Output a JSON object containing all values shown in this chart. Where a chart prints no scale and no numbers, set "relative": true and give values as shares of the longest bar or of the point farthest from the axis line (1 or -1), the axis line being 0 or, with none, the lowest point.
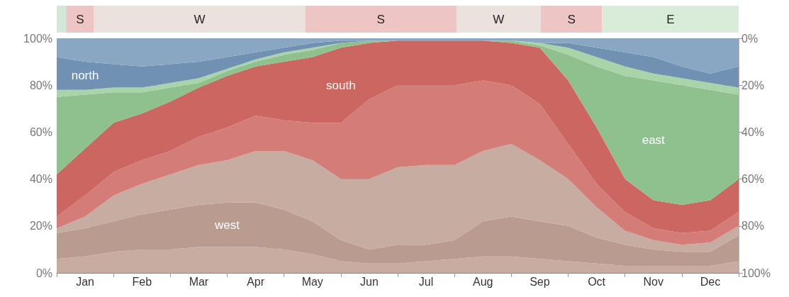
{
  "chart_data": [
    {
      "type": "bar",
      "orientation": "horizontal",
      "stacked": true,
      "relative": true,
      "categories": [
        null
      ],
      "series": [
        {
          "color": "#d3e8d8",
          "values": [
            0.0137
          ]
        },
        {
          "name": "S",
          "color": "#eec5c5",
          "values": [
            0.0411
          ]
        },
        {
          "name": "W",
          "color": "#ebe1dd",
          "values": [
            0.3096
          ]
        },
        {
          "name": "S",
          "color": "#eec5c5",
          "values": [
            0.2219
          ]
        },
        {
          "name": "W",
          "color": "#ebe1dd",
          "values": [
            0.1233
          ]
        },
        {
          "name": "S",
          "color": "#eec5c5",
          "values": [
            0.0904
          ]
        },
        {
          "name": "E",
          "color": "#d9ebd9",
          "values": [
            0.2
          ]
        }
      ]
    },
    {
      "type": "area",
      "stacked": true,
      "grid": true,
      "categories": [
        null,
        "Jan",
        null,
        "Feb",
        null,
        "Mar",
        null,
        "Apr",
        null,
        "May",
        null,
        "Jun",
        null,
        "Jul",
        null,
        "Aug",
        null,
        "Sep",
        null,
        "Oct",
        null,
        "Nov",
        null,
        "Dec",
        null
      ],
      "ylim": [
        0,
        100
      ],
      "yticks": [
        {
          "value": 0,
          "label": "0%"
        },
        {
          "value": 20,
          "label": "20%"
        },
        {
          "value": 40,
          "label": "40%"
        },
        {
          "value": 60,
          "label": "60%"
        },
        {
          "value": 80,
          "label": "80%"
        },
        {
          "value": 100,
          "label": "100%"
        }
      ],
      "y2lim": [
        100,
        0
      ],
      "y2ticks": [
        {
          "value": 0,
          "label": "0%"
        },
        {
          "value": 20,
          "label": "20%"
        },
        {
          "value": 40,
          "label": "40%"
        },
        {
          "value": 60,
          "label": "60%"
        },
        {
          "value": 80,
          "label": "80%"
        },
        {
          "value": 100,
          "label": "100%"
        }
      ],
      "series": [
        {
          "color": "#c8aca1",
          "values": [
            6,
            7,
            9,
            10,
            10,
            11,
            11,
            11,
            10,
            8,
            5,
            4,
            4,
            5,
            6,
            7,
            7,
            6,
            5,
            4,
            3,
            3,
            3,
            3,
            5
          ]
        },
        {
          "name": "west",
          "color": "#b99b8f",
          "values": [
            11,
            12,
            13,
            15,
            17,
            18,
            19,
            19,
            17,
            14,
            9,
            6,
            8,
            7,
            8,
            15,
            17,
            16,
            15,
            11,
            9,
            7,
            6,
            6,
            11
          ]
        },
        {
          "color": "#c6aca1",
          "values": [
            2,
            5,
            11,
            13,
            15,
            17,
            18,
            22,
            25,
            26,
            26,
            30,
            33,
            34,
            32,
            30,
            31,
            26,
            20,
            13,
            6,
            4,
            3,
            4,
            4
          ]
        },
        {
          "color": "#d47c77",
          "values": [
            5,
            9,
            10,
            10,
            10,
            12,
            14,
            15,
            13,
            16,
            24,
            34,
            35,
            34,
            34,
            30,
            25,
            24,
            15,
            10,
            8,
            5,
            5,
            5,
            6
          ]
        },
        {
          "name": "south",
          "color": "#cc6660",
          "values": [
            18,
            20,
            21,
            20,
            21,
            21,
            22,
            21,
            25,
            28,
            32,
            24,
            19,
            19,
            19,
            17,
            18,
            24,
            27,
            24,
            14,
            12,
            12,
            13,
            14
          ]
        },
        {
          "name": "east",
          "color": "#8ec18e",
          "values": [
            33,
            23,
            13,
            9,
            6,
            2,
            2,
            2,
            3,
            3,
            2,
            1,
            0,
            0,
            0,
            0,
            1,
            1,
            11,
            26,
            44,
            51,
            51,
            47,
            36
          ]
        },
        {
          "color": "#a9d3a9",
          "values": [
            3,
            2,
            2,
            2,
            2,
            2,
            1,
            1,
            1,
            1,
            0,
            0,
            0,
            0,
            0,
            0,
            0,
            1,
            3,
            4,
            4,
            3,
            3,
            3,
            3
          ]
        },
        {
          "name": "north",
          "color": "#7191b2",
          "values": [
            14,
            12,
            10,
            9,
            8,
            7,
            5,
            3,
            2,
            2,
            1,
            0,
            0,
            0,
            0,
            0,
            0,
            0,
            2,
            4,
            6,
            7,
            5,
            4,
            9
          ]
        },
        {
          "color": "#89a6c3",
          "values": [
            8,
            10,
            11,
            12,
            11,
            10,
            8,
            6,
            4,
            2,
            1,
            1,
            1,
            1,
            1,
            1,
            1,
            2,
            2,
            4,
            6,
            8,
            12,
            15,
            12
          ]
        }
      ]
    }
  ]
}
